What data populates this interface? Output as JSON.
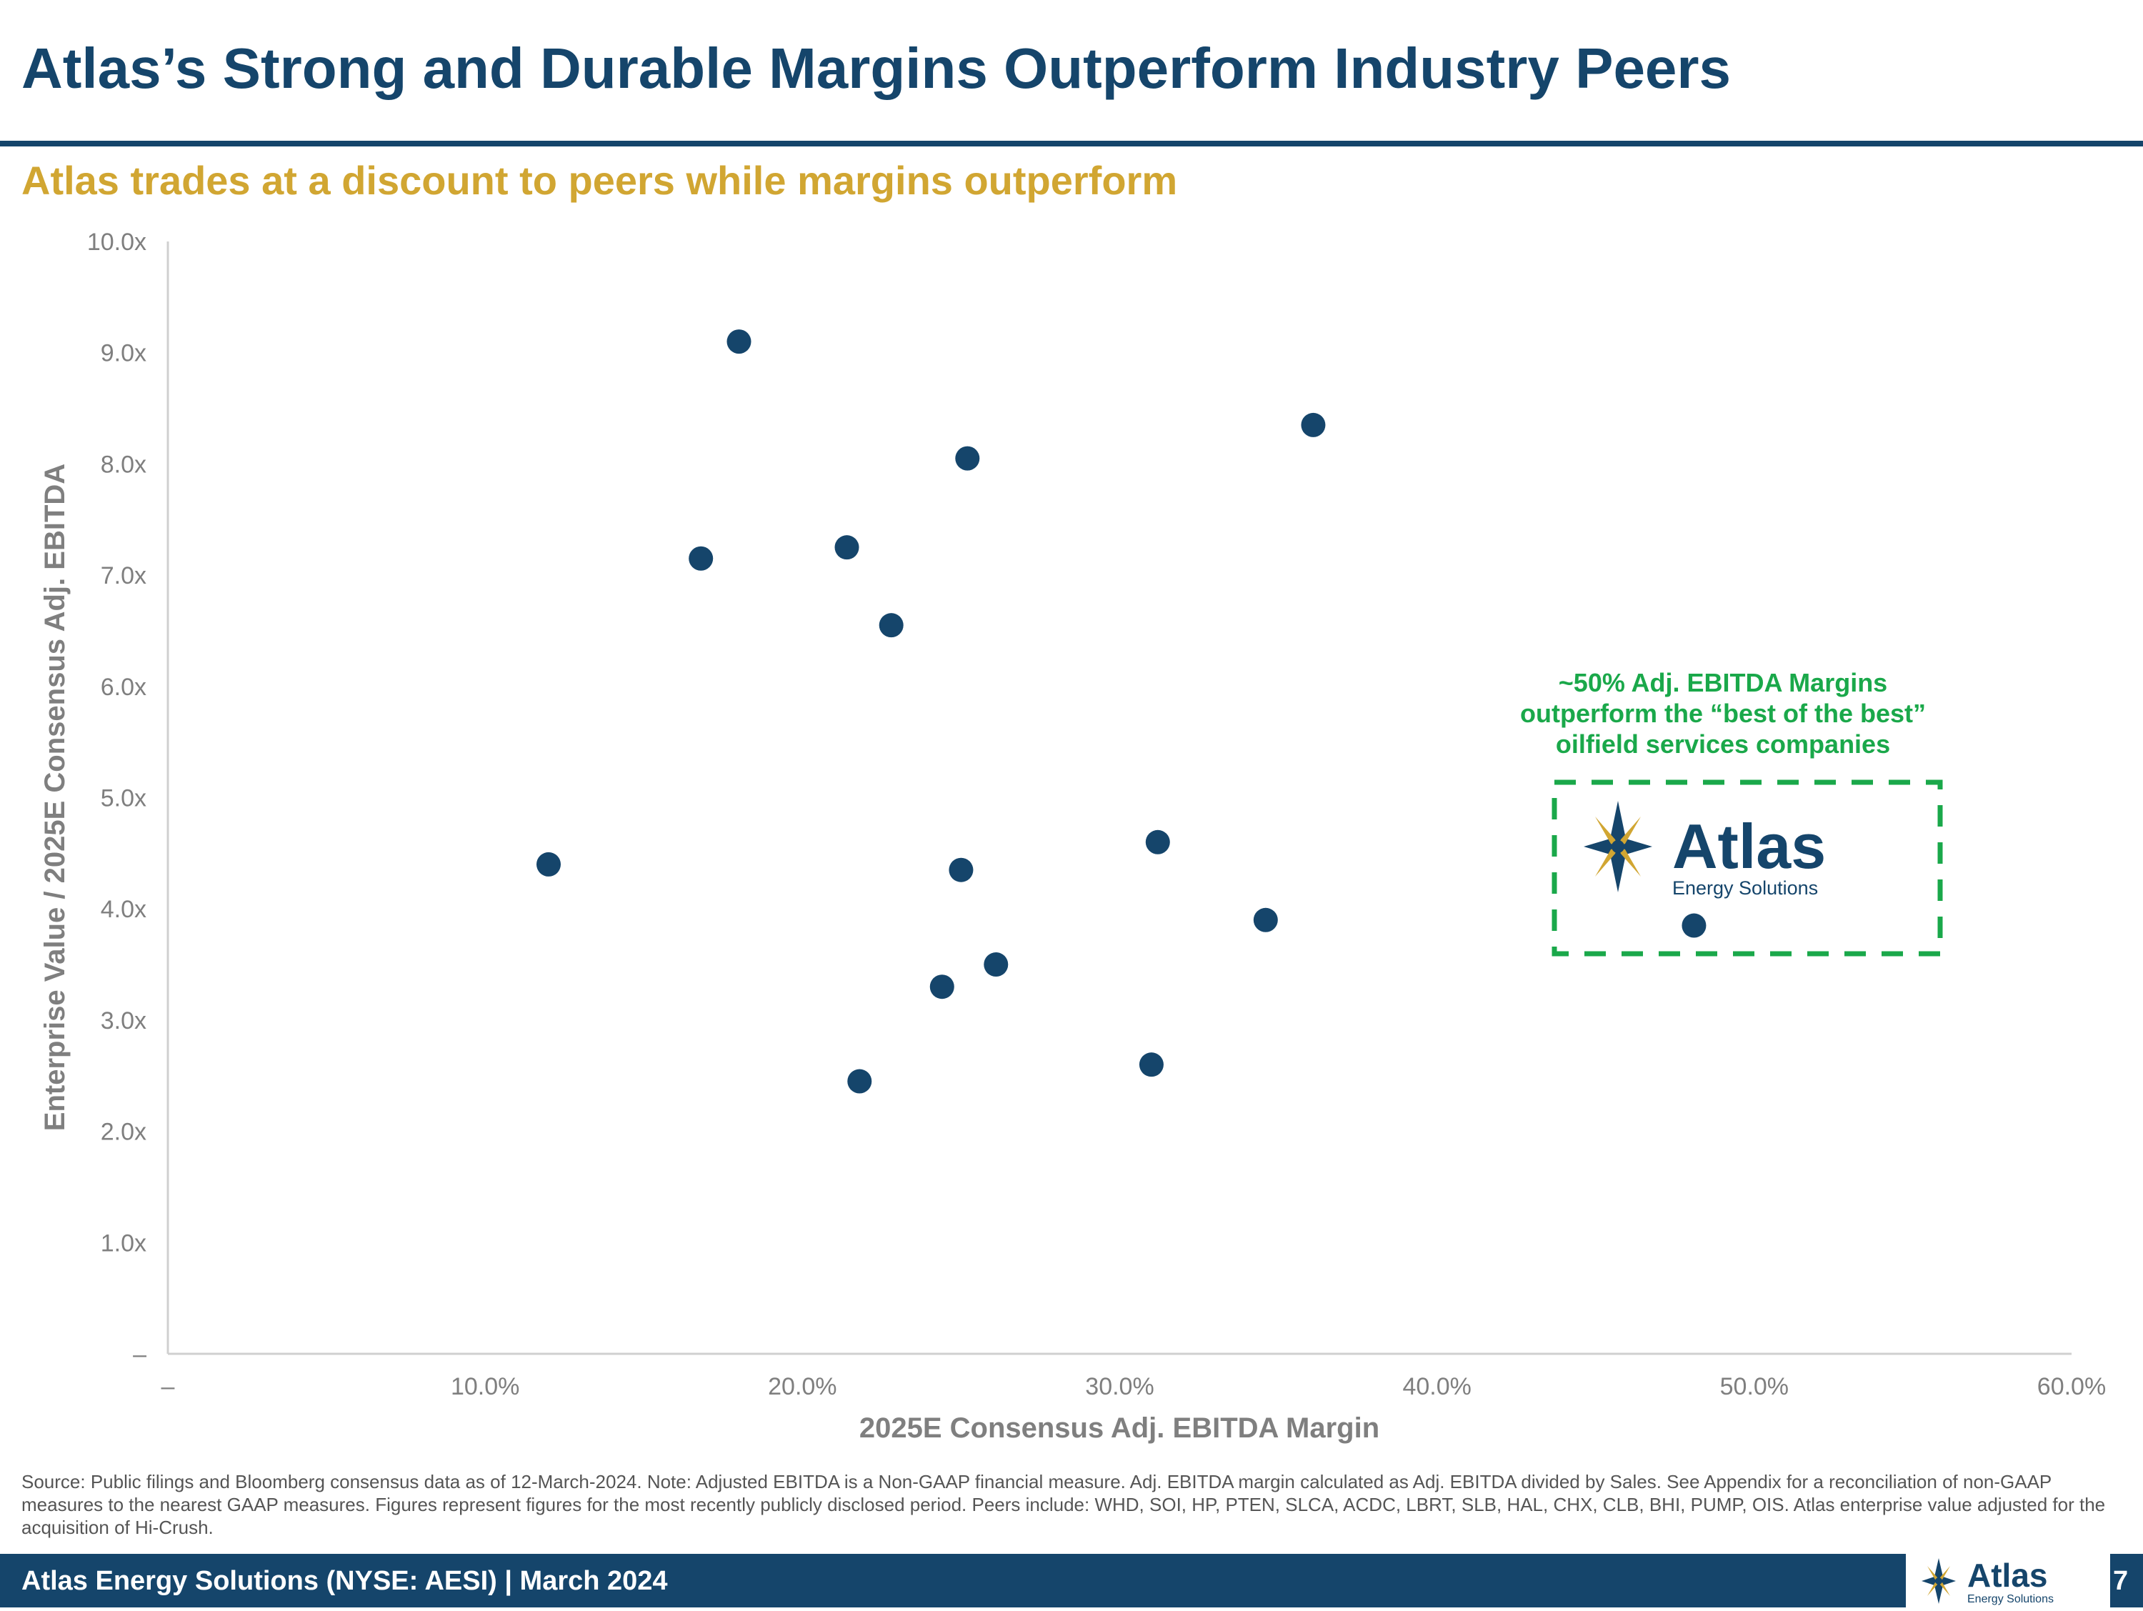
{
  "slide": {
    "title": "Atlas’s Strong and Durable Margins Outperform Industry Peers",
    "subtitle": "Atlas trades at a discount to peers while margins outperform",
    "source_note": "Source: Public filings and Bloomberg consensus data as of 12-March-2024. Note: Adjusted EBITDA is a Non-GAAP financial measure. Adj. EBITDA margin calculated as Adj. EBITDA divided by Sales. See Appendix for a reconciliation of non-GAAP measures to the nearest GAAP measures. Figures represent figures for the most recently publicly disclosed period. Peers include: WHD, SOI, HP, PTEN, SLCA, ACDC, LBRT, SLB, HAL, CHX, CLB, BHI, PUMP, OIS. Atlas enterprise value adjusted for the acquisition of Hi-Crush.",
    "footer_text": "Atlas Energy Solutions (NYSE: AESI)  |  March 2024",
    "page_number": "7"
  },
  "logo": {
    "word": "Atlas",
    "tagline": "Energy Solutions"
  },
  "colors": {
    "primary_navy": "#15456b",
    "accent_gold": "#d1a632",
    "highlight_green": "#1aa84a",
    "axis_text": "#7f7f7f"
  },
  "chart_data": {
    "type": "scatter",
    "xlabel": "2025E Consensus Adj. EBITDA Margin",
    "ylabel": "Enterprise Value / 2025E Consensus Adj. EBITDA",
    "xlim": [
      0,
      60
    ],
    "ylim": [
      0,
      10
    ],
    "grid": false,
    "x_ticks": [
      {
        "value": 0,
        "label": "–"
      },
      {
        "value": 10,
        "label": "10.0%"
      },
      {
        "value": 20,
        "label": "20.0%"
      },
      {
        "value": 30,
        "label": "30.0%"
      },
      {
        "value": 40,
        "label": "40.0%"
      },
      {
        "value": 50,
        "label": "50.0%"
      },
      {
        "value": 60,
        "label": "60.0%"
      }
    ],
    "y_ticks": [
      {
        "value": 0,
        "label": "–"
      },
      {
        "value": 1,
        "label": "1.0x"
      },
      {
        "value": 2,
        "label": "2.0x"
      },
      {
        "value": 3,
        "label": "3.0x"
      },
      {
        "value": 4,
        "label": "4.0x"
      },
      {
        "value": 5,
        "label": "5.0x"
      },
      {
        "value": 6,
        "label": "6.0x"
      },
      {
        "value": 7,
        "label": "7.0x"
      },
      {
        "value": 8,
        "label": "8.0x"
      },
      {
        "value": 9,
        "label": "9.0x"
      },
      {
        "value": 10,
        "label": "10.0x"
      }
    ],
    "peers": [
      {
        "x": 12.0,
        "y": 4.4
      },
      {
        "x": 16.8,
        "y": 7.15
      },
      {
        "x": 18.0,
        "y": 9.1
      },
      {
        "x": 21.4,
        "y": 7.25
      },
      {
        "x": 21.8,
        "y": 2.45
      },
      {
        "x": 22.8,
        "y": 6.55
      },
      {
        "x": 24.4,
        "y": 3.3
      },
      {
        "x": 25.0,
        "y": 4.35
      },
      {
        "x": 25.2,
        "y": 8.05
      },
      {
        "x": 26.1,
        "y": 3.5
      },
      {
        "x": 31.0,
        "y": 2.6
      },
      {
        "x": 31.2,
        "y": 4.6
      },
      {
        "x": 34.6,
        "y": 3.9
      },
      {
        "x": 36.1,
        "y": 8.35
      }
    ],
    "atlas": {
      "x": 48.1,
      "y": 3.85
    },
    "annotation": {
      "lines": [
        "~50% Adj. EBITDA Margins",
        "outperform the “best of the best”",
        "oilfield services companies"
      ]
    }
  }
}
